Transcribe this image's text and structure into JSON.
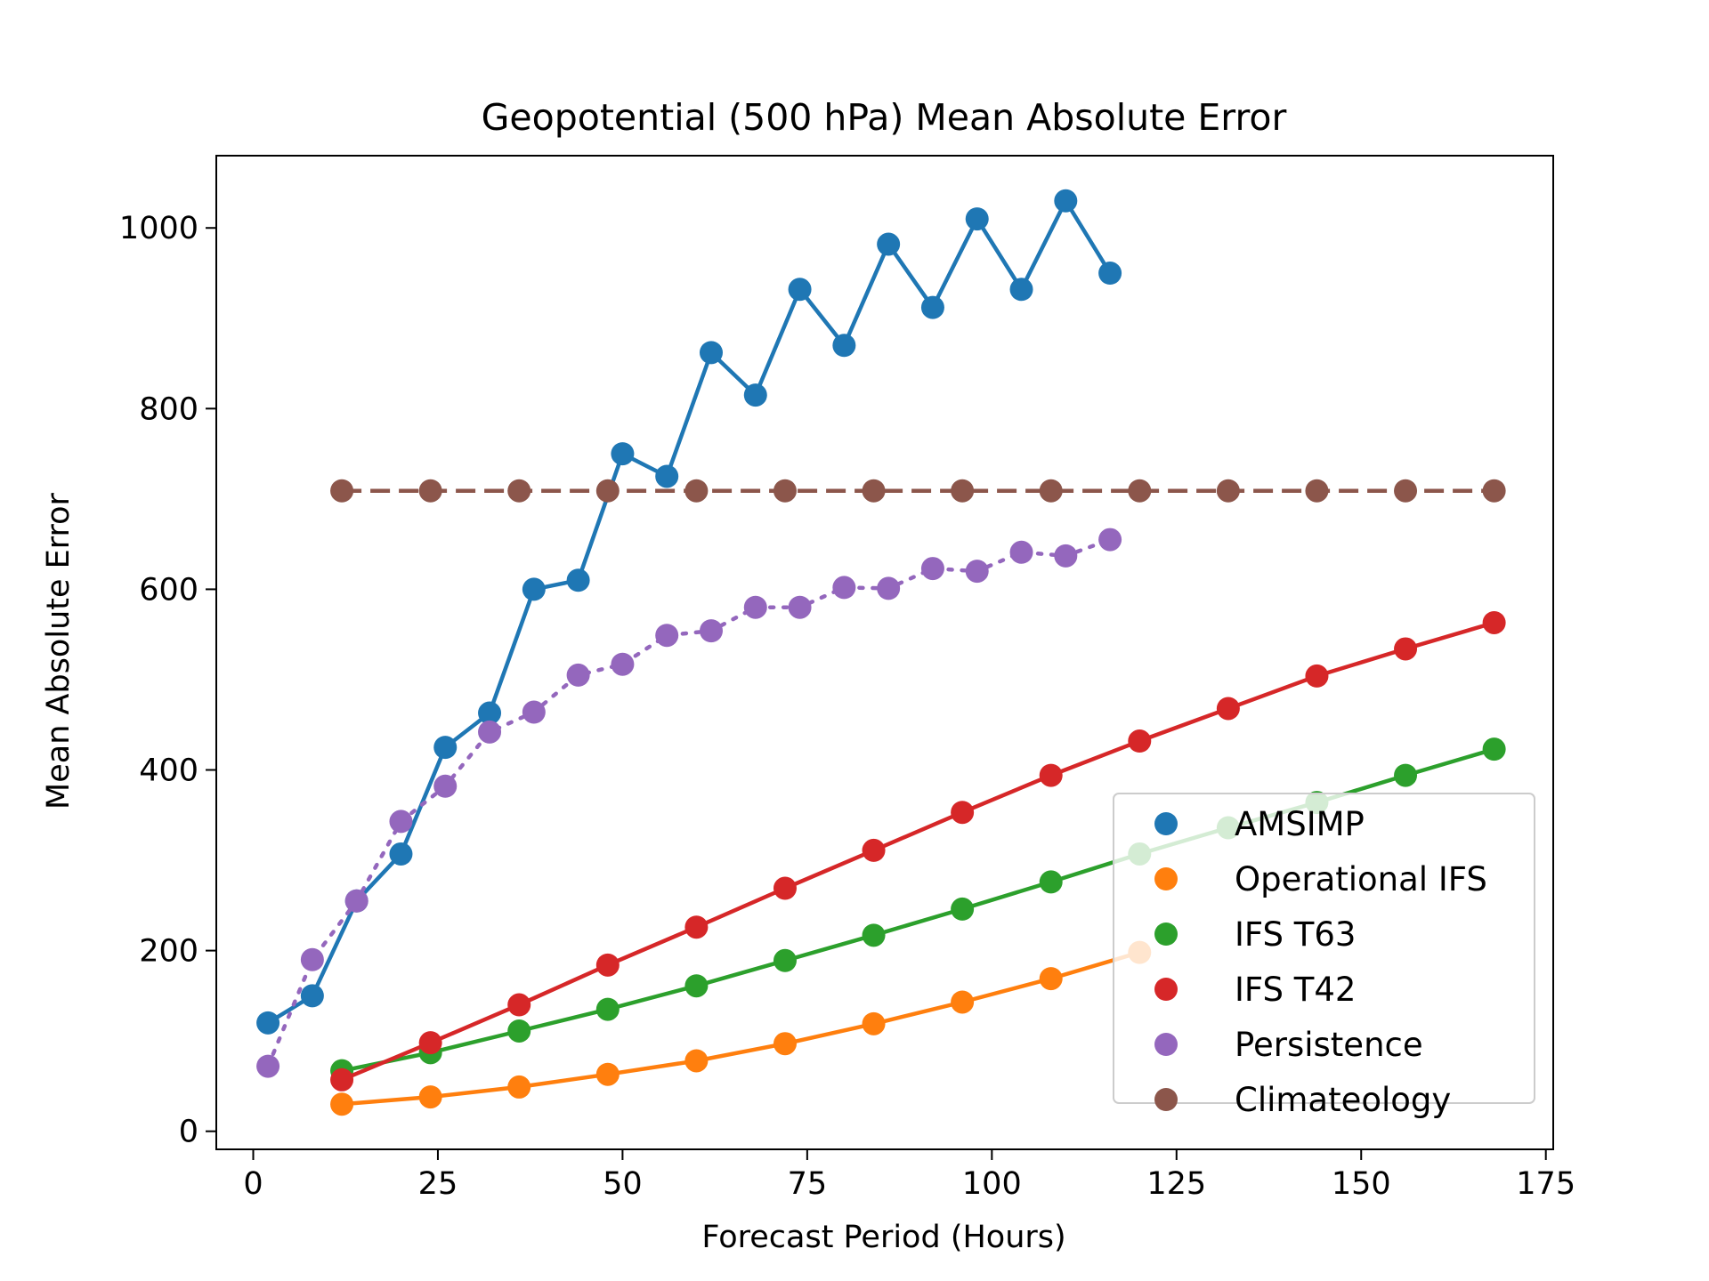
{
  "chart_data": {
    "type": "line",
    "title": "Geopotential (500 hPa) Mean Absolute Error",
    "xlabel": "Forecast Period (Hours)",
    "ylabel": "Mean Absolute Error",
    "xlim": [
      -5,
      176
    ],
    "ylim": [
      -20,
      1080
    ],
    "xticks": [
      0,
      25,
      50,
      75,
      100,
      125,
      150,
      175
    ],
    "xtick_labels": [
      "0",
      "25",
      "50",
      "75",
      "100",
      "125",
      "150",
      "175"
    ],
    "yticks": [
      0,
      200,
      400,
      600,
      800,
      1000
    ],
    "ytick_labels": [
      "0",
      "200",
      "400",
      "600",
      "800",
      "1000"
    ],
    "grid": false,
    "legend_position": "lower-right",
    "series": [
      {
        "name": "AMSIMP",
        "color": "#1f77b4",
        "line_style": "solid",
        "x": [
          2,
          8,
          14,
          20,
          26,
          32,
          38,
          44,
          50,
          56,
          62,
          68,
          74,
          80,
          86,
          92,
          98,
          104,
          110,
          116
        ],
        "y": [
          120,
          150,
          255,
          307,
          425,
          463,
          600,
          610,
          750,
          725,
          862,
          815,
          932,
          870,
          982,
          912,
          1010,
          932,
          1030,
          950
        ]
      },
      {
        "name": "Operational IFS",
        "color": "#ff7f0e",
        "line_style": "solid",
        "x": [
          12,
          24,
          36,
          48,
          60,
          72,
          84,
          96,
          108,
          120
        ],
        "y": [
          30,
          38,
          49,
          63,
          78,
          97,
          119,
          143,
          169,
          198
        ]
      },
      {
        "name": "IFS T63",
        "color": "#2ca02c",
        "line_style": "solid",
        "x": [
          12,
          24,
          36,
          48,
          60,
          72,
          84,
          96,
          108,
          120,
          132,
          144,
          156,
          168
        ],
        "y": [
          67,
          87,
          111,
          135,
          161,
          189,
          217,
          246,
          276,
          307,
          336,
          364,
          394,
          423
        ]
      },
      {
        "name": "IFS T42",
        "color": "#d62728",
        "line_style": "solid",
        "x": [
          12,
          24,
          36,
          48,
          60,
          72,
          84,
          96,
          108,
          120,
          132,
          144,
          156,
          168
        ],
        "y": [
          57,
          98,
          140,
          184,
          226,
          269,
          311,
          353,
          394,
          432,
          468,
          504,
          534,
          563
        ]
      },
      {
        "name": "Persistence",
        "color": "#9467bd",
        "line_style": "dotted",
        "x": [
          2,
          8,
          14,
          20,
          26,
          32,
          38,
          44,
          50,
          56,
          62,
          68,
          74,
          80,
          86,
          92,
          98,
          104,
          110,
          116
        ],
        "y": [
          72,
          190,
          255,
          343,
          382,
          442,
          464,
          505,
          517,
          549,
          554,
          580,
          580,
          602,
          601,
          623,
          620,
          641,
          637,
          655
        ]
      },
      {
        "name": "Climateology",
        "color": "#8c564b",
        "line_style": "dashed",
        "x": [
          12,
          24,
          36,
          48,
          60,
          72,
          84,
          96,
          108,
          120,
          132,
          144,
          156,
          168
        ],
        "y": [
          709,
          709,
          709,
          709,
          709,
          709,
          709,
          709,
          709,
          709,
          709,
          709,
          709,
          709
        ]
      }
    ]
  }
}
